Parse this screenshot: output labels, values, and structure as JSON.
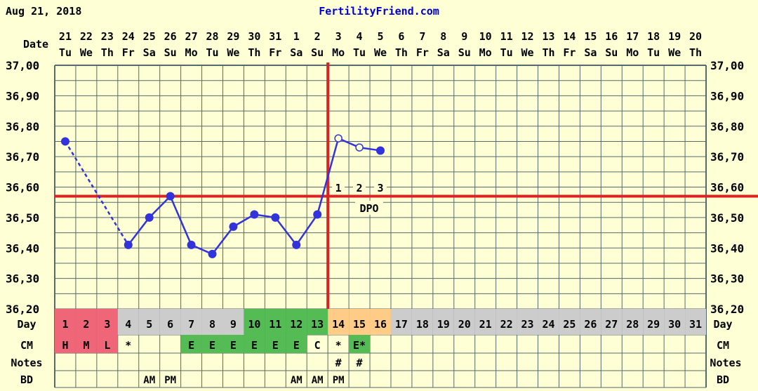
{
  "header": {
    "date": "Aug 21, 2018",
    "site": "FertilityFriend.com"
  },
  "labels": {
    "date": "Date",
    "day": "Day",
    "cm": "CM",
    "notes": "Notes",
    "bd": "BD",
    "dpo": "DPO"
  },
  "colors": {
    "background": "#ffffd6",
    "grid": "#556b6b",
    "temp_line": "#3333dd",
    "coverline": "#dd2222",
    "ovulation_line": "#dd2222",
    "period": "#ee6677",
    "fertile": "#55bb55",
    "luteal": "#ffcc88",
    "day_cell": "#cccccc",
    "title": "#0000cc"
  },
  "chart_data": {
    "type": "line",
    "title": "FertilityFriend.com",
    "ylabel": "",
    "xlabel": "",
    "ylim": [
      36.2,
      37.0
    ],
    "y_ticks": [
      "37,00",
      "36,90",
      "36,80",
      "36,70",
      "36,60",
      "36,50",
      "36,40",
      "36,30",
      "36,20"
    ],
    "dates": [
      "21",
      "22",
      "23",
      "24",
      "25",
      "26",
      "27",
      "28",
      "29",
      "30",
      "31",
      "1",
      "2",
      "3",
      "4",
      "5",
      "6",
      "7",
      "8",
      "9",
      "10",
      "11",
      "12",
      "13",
      "14",
      "15",
      "16",
      "17",
      "18",
      "19",
      "20"
    ],
    "weekdays": [
      "Tu",
      "We",
      "Th",
      "Fr",
      "Sa",
      "Su",
      "Mo",
      "Tu",
      "We",
      "Th",
      "Fr",
      "Sa",
      "Su",
      "Mo",
      "Tu",
      "We",
      "Th",
      "Fr",
      "Sa",
      "Su",
      "Mo",
      "Tu",
      "We",
      "Th",
      "Fr",
      "Sa",
      "Su",
      "Mo",
      "Tu",
      "We",
      "Th"
    ],
    "cycle_days": [
      "1",
      "2",
      "3",
      "4",
      "5",
      "6",
      "7",
      "8",
      "9",
      "10",
      "11",
      "12",
      "13",
      "14",
      "15",
      "16",
      "17",
      "18",
      "19",
      "20",
      "21",
      "22",
      "23",
      "24",
      "25",
      "26",
      "27",
      "28",
      "29",
      "30",
      "31"
    ],
    "day_styles": [
      "period",
      "period",
      "period",
      "",
      "",
      "",
      "",
      "",
      "",
      "fertile",
      "fertile",
      "fertile",
      "fertile",
      "luteal",
      "luteal",
      "luteal",
      "",
      "",
      "",
      "",
      "",
      "",
      "",
      "",
      "",
      "",
      "",
      "",
      "",
      "",
      ""
    ],
    "temperatures": [
      {
        "day": 1,
        "temp": 36.75,
        "style": "filled"
      },
      {
        "day": 4,
        "temp": 36.41,
        "style": "filled"
      },
      {
        "day": 5,
        "temp": 36.5,
        "style": "filled"
      },
      {
        "day": 6,
        "temp": 36.57,
        "style": "filled"
      },
      {
        "day": 7,
        "temp": 36.41,
        "style": "filled"
      },
      {
        "day": 8,
        "temp": 36.38,
        "style": "filled"
      },
      {
        "day": 9,
        "temp": 36.47,
        "style": "filled"
      },
      {
        "day": 10,
        "temp": 36.51,
        "style": "filled"
      },
      {
        "day": 11,
        "temp": 36.5,
        "style": "filled"
      },
      {
        "day": 12,
        "temp": 36.41,
        "style": "filled"
      },
      {
        "day": 13,
        "temp": 36.51,
        "style": "filled"
      },
      {
        "day": 14,
        "temp": 36.76,
        "style": "open"
      },
      {
        "day": 15,
        "temp": 36.73,
        "style": "open"
      },
      {
        "day": 16,
        "temp": 36.72,
        "style": "filled"
      }
    ],
    "segments": [
      {
        "from": 1,
        "to": 4,
        "style": "dashed"
      },
      {
        "from": 4,
        "to": 16,
        "style": "solid"
      }
    ],
    "coverline": 36.57,
    "ovulation_day": 13,
    "dpo": [
      {
        "day": 14,
        "label": "1"
      },
      {
        "day": 15,
        "label": "2"
      },
      {
        "day": 16,
        "label": "3"
      }
    ],
    "cm": [
      {
        "day": 1,
        "label": "H",
        "style": "period"
      },
      {
        "day": 2,
        "label": "M",
        "style": "period"
      },
      {
        "day": 3,
        "label": "L",
        "style": "period"
      },
      {
        "day": 4,
        "label": "*",
        "style": ""
      },
      {
        "day": 7,
        "label": "E",
        "style": "fertile"
      },
      {
        "day": 8,
        "label": "E",
        "style": "fertile"
      },
      {
        "day": 9,
        "label": "E",
        "style": "fertile"
      },
      {
        "day": 10,
        "label": "E",
        "style": "fertile"
      },
      {
        "day": 11,
        "label": "E",
        "style": "fertile"
      },
      {
        "day": 12,
        "label": "E",
        "style": "fertile"
      },
      {
        "day": 13,
        "label": "C",
        "style": ""
      },
      {
        "day": 14,
        "label": "*",
        "style": ""
      },
      {
        "day": 15,
        "label": "E*",
        "style": "fertile"
      }
    ],
    "notes": [
      {
        "day": 14,
        "label": "#"
      },
      {
        "day": 15,
        "label": "#"
      }
    ],
    "bd": [
      {
        "day": 5,
        "label": "AM"
      },
      {
        "day": 6,
        "label": "PM"
      },
      {
        "day": 12,
        "label": "AM"
      },
      {
        "day": 13,
        "label": "AM"
      },
      {
        "day": 14,
        "label": "PM"
      }
    ]
  }
}
